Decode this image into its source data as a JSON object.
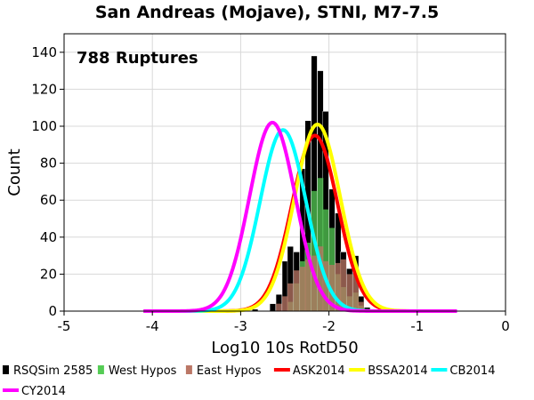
{
  "chart_data": {
    "type": "bar",
    "title": "San Andreas (Mojave), STNI, M7-7.5",
    "annotation": "788 Ruptures",
    "xlabel": "Log10 10s RotD50",
    "ylabel": "Count",
    "xlim": [
      -5,
      0
    ],
    "ylim": [
      0,
      150
    ],
    "x_ticks": [
      "-5",
      "-4",
      "-3",
      "-2",
      "-1",
      "0"
    ],
    "y_ticks": [
      "0",
      "20",
      "40",
      "60",
      "80",
      "100",
      "120",
      "140"
    ],
    "grid": true,
    "legend_position": "bottom",
    "bin_width": 0.0667,
    "histograms": [
      {
        "name": "RSQSim 2585",
        "color": "#000000",
        "bin_starts": [
          -2.87,
          -2.67,
          -2.6,
          -2.53,
          -2.47,
          -2.4,
          -2.33,
          -2.27,
          -2.2,
          -2.13,
          -2.07,
          -2.0,
          -1.93,
          -1.87,
          -1.8,
          -1.73,
          -1.67,
          -1.6
        ],
        "counts": [
          1,
          4,
          9,
          27,
          35,
          32,
          77,
          103,
          138,
          130,
          108,
          66,
          53,
          32,
          23,
          30,
          8,
          2
        ]
      },
      {
        "name": "West Hypos",
        "color": "#55cc55",
        "bin_starts": [
          -2.47,
          -2.4,
          -2.33,
          -2.27,
          -2.2,
          -2.13,
          -2.07,
          -2.0,
          -1.93,
          -1.87,
          -1.8,
          -1.73,
          -1.67
        ],
        "counts": [
          5,
          15,
          27,
          37,
          65,
          72,
          55,
          45,
          20,
          13,
          8,
          10,
          3
        ]
      },
      {
        "name": "East Hypos",
        "color": "#bb7766",
        "bin_starts": [
          -2.6,
          -2.53,
          -2.47,
          -2.4,
          -2.33,
          -2.27,
          -2.2,
          -2.13,
          -2.07,
          -2.0,
          -1.93,
          -1.87,
          -1.8,
          -1.73,
          -1.67,
          -1.6
        ],
        "counts": [
          4,
          8,
          15,
          22,
          24,
          28,
          30,
          35,
          27,
          25,
          26,
          28,
          20,
          20,
          5,
          1
        ]
      }
    ],
    "series": [
      {
        "name": "ASK2014",
        "color": "#ff0000",
        "mean": -2.16,
        "sigma": 0.26,
        "peak": 95
      },
      {
        "name": "BSSA2014",
        "color": "#ffff00",
        "mean": -2.13,
        "sigma": 0.26,
        "peak": 101
      },
      {
        "name": "CB2014",
        "color": "#00ffff",
        "mean": -2.52,
        "sigma": 0.26,
        "peak": 98
      },
      {
        "name": "CY2014",
        "color": "#ff00ff",
        "mean": -2.64,
        "sigma": 0.26,
        "peak": 102
      }
    ],
    "curve_range": [
      -4.1,
      -0.55
    ]
  }
}
